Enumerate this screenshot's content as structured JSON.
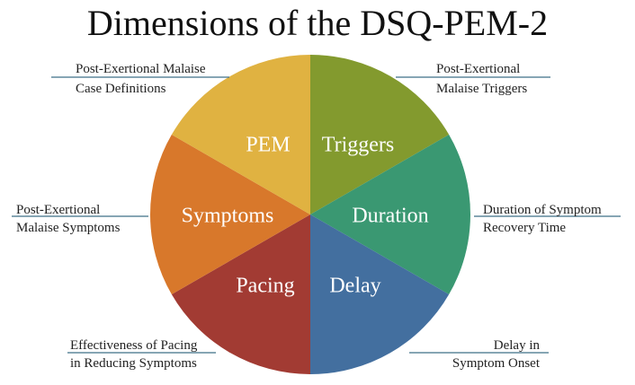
{
  "title": "Dimensions of the DSQ-PEM-2",
  "segments": [
    {
      "label": "Triggers",
      "color": "#839a2e",
      "annotation": [
        "Post-Exertional",
        "Malaise Triggers"
      ]
    },
    {
      "label": "Duration",
      "color": "#3a9872",
      "annotation": [
        "Duration of Symptom",
        "Recovery Time"
      ]
    },
    {
      "label": "Delay",
      "color": "#436f9f",
      "annotation": [
        "Delay in",
        "Symptom Onset"
      ]
    },
    {
      "label": "Pacing",
      "color": "#a23b33",
      "annotation": [
        "Effectiveness of Pacing",
        "in Reducing Symptoms"
      ]
    },
    {
      "label": "Symptoms",
      "color": "#d8782b",
      "annotation": [
        "Post-Exertional",
        "Malaise Symptoms"
      ]
    },
    {
      "label": "PEM",
      "color": "#e0b241",
      "annotation": [
        "Post-Exertional Malaise",
        "Case Definitions"
      ]
    }
  ],
  "leader_color": "#3f6f88"
}
